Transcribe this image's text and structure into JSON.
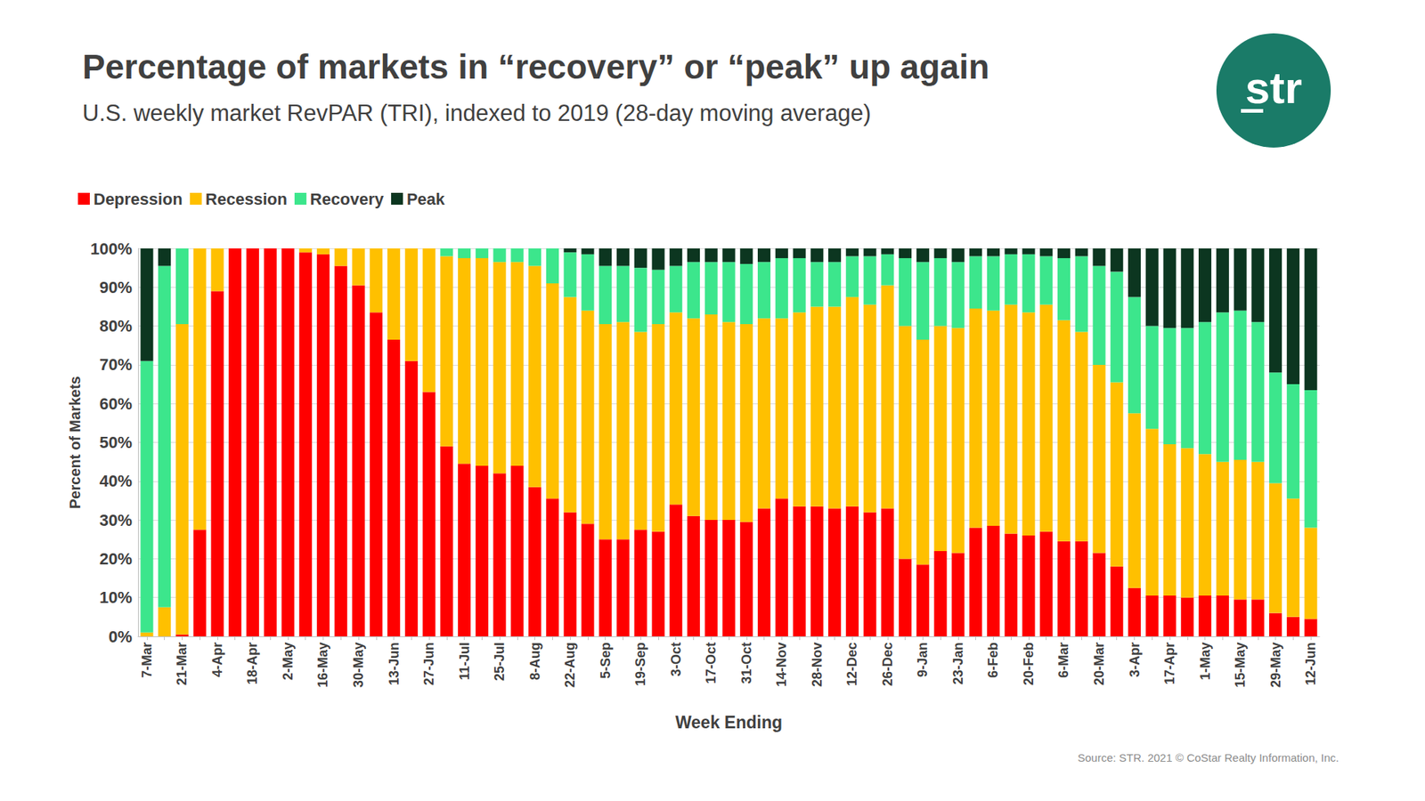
{
  "chart_data": {
    "type": "bar",
    "title": "Percentage of markets in “recovery” or “peak” up again",
    "subtitle": "U.S. weekly market RevPAR (TRI), indexed to 2019 (28-day moving average)",
    "x_label": "Week Ending",
    "y_label": "Percent of Markets",
    "source": "Source: STR. 2021 © CoStar Realty Information, Inc.",
    "logo": "str",
    "stacked": true,
    "grid": true,
    "legend": "top-left",
    "ylim": [
      0,
      100
    ],
    "yticks": [
      {
        "value": 0,
        "label": "0%"
      },
      {
        "value": 10,
        "label": "10%"
      },
      {
        "value": 20,
        "label": "20%"
      },
      {
        "value": 30,
        "label": "30%"
      },
      {
        "value": 40,
        "label": "40%"
      },
      {
        "value": 50,
        "label": "50%"
      },
      {
        "value": 60,
        "label": "60%"
      },
      {
        "value": 70,
        "label": "70%"
      },
      {
        "value": 80,
        "label": "80%"
      },
      {
        "value": 90,
        "label": "90%"
      },
      {
        "value": 100,
        "label": "100%"
      }
    ],
    "categories": [
      "7-Mar",
      null,
      "21-Mar",
      null,
      "4-Apr",
      null,
      "18-Apr",
      null,
      "2-May",
      null,
      "16-May",
      null,
      "30-May",
      null,
      "13-Jun",
      null,
      "27-Jun",
      null,
      "11-Jul",
      null,
      "25-Jul",
      null,
      "8-Aug",
      null,
      "22-Aug",
      null,
      "5-Sep",
      null,
      "19-Sep",
      null,
      "3-Oct",
      null,
      "17-Oct",
      null,
      "31-Oct",
      null,
      "14-Nov",
      null,
      "28-Nov",
      null,
      "12-Dec",
      null,
      "26-Dec",
      null,
      "9-Jan",
      null,
      "23-Jan",
      null,
      "6-Feb",
      null,
      "20-Feb",
      null,
      "6-Mar",
      null,
      "20-Mar",
      null,
      "3-Apr",
      null,
      "17-Apr",
      null,
      "1-May",
      null,
      "15-May",
      null,
      "29-May",
      null,
      "12-Jun"
    ],
    "series": [
      {
        "name": "Depression",
        "color": "#ff0000",
        "values": [
          0,
          0,
          0.5,
          27.5,
          89,
          100,
          100,
          100,
          100,
          99,
          98.5,
          95.5,
          90.5,
          83.5,
          76.5,
          71,
          63,
          49,
          44.5,
          44,
          42,
          44,
          38.5,
          35.5,
          32,
          29,
          25,
          25,
          27.5,
          27,
          34,
          31,
          30,
          30,
          29.5,
          33,
          35.5,
          33.5,
          33.5,
          33,
          33.5,
          32,
          33,
          20,
          18.5,
          22,
          21.5,
          28,
          28.5,
          26.5,
          26,
          27,
          24.5,
          24.5,
          21.5,
          18,
          12.5,
          10.5,
          10.5,
          10,
          10.5,
          10.5,
          9.5,
          9.5,
          6,
          5,
          4.5
        ]
      },
      {
        "name": "Recession",
        "color": "#ffc000",
        "values": [
          1,
          7.5,
          80,
          72.5,
          11,
          0,
          0,
          0,
          0,
          1,
          1.5,
          4.5,
          9.5,
          16.5,
          23.5,
          29,
          37,
          49,
          53,
          53.5,
          54.5,
          52.5,
          57,
          55.5,
          55.5,
          55,
          55.5,
          56,
          51,
          53.5,
          49.5,
          51,
          53,
          51,
          51,
          49,
          46.5,
          50,
          51.5,
          52,
          54,
          53.5,
          57.5,
          60,
          58,
          58,
          58,
          56.5,
          55.5,
          59,
          57.5,
          58.5,
          57,
          54,
          48.5,
          47.5,
          45,
          43,
          39,
          38.5,
          36.5,
          34.5,
          36,
          35.5,
          33.5,
          30.5,
          23.5
        ]
      },
      {
        "name": "Recovery",
        "color": "#3ce68c",
        "values": [
          70,
          88,
          19.5,
          0,
          0,
          0,
          0,
          0,
          0,
          0,
          0,
          0,
          0,
          0,
          0,
          0,
          0,
          2,
          2.5,
          2.5,
          3.5,
          3.5,
          4.5,
          9,
          11.5,
          14.5,
          15,
          14.5,
          16.5,
          14,
          12,
          14.5,
          13.5,
          15.5,
          15.5,
          14.5,
          15.5,
          14,
          11.5,
          11.5,
          10.5,
          12.5,
          8,
          17.5,
          20,
          17.5,
          17,
          13.5,
          14,
          13,
          15,
          12.5,
          16,
          19.5,
          25.5,
          28.5,
          30,
          26.5,
          30,
          31,
          34,
          38.5,
          38.5,
          36,
          28.5,
          29.5,
          35.5
        ]
      },
      {
        "name": "Peak",
        "color": "#0c3620",
        "values": [
          29,
          4.5,
          0,
          0,
          0,
          0,
          0,
          0,
          0,
          0,
          0,
          0,
          0,
          0,
          0,
          0,
          0,
          0,
          0,
          0,
          0,
          0,
          0,
          0,
          1,
          1.5,
          4.5,
          4.5,
          5,
          5.5,
          4.5,
          3.5,
          3.5,
          3.5,
          4,
          3.5,
          2.5,
          2.5,
          3.5,
          3.5,
          2,
          2,
          1.5,
          2.5,
          3.5,
          2.5,
          3.5,
          2,
          2,
          1.5,
          1.5,
          2,
          2.5,
          2,
          4.5,
          6,
          12.5,
          20,
          20.5,
          20.5,
          19,
          16.5,
          16,
          19,
          32,
          35,
          36.5
        ]
      }
    ]
  }
}
